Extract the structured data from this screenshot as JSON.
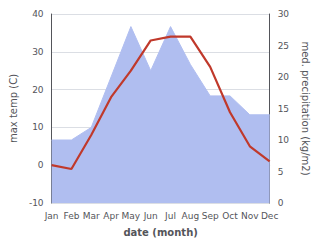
{
  "chart_data": {
    "type": "line",
    "categories": [
      "Jan",
      "Feb",
      "Mar",
      "Apr",
      "May",
      "Jun",
      "Jul",
      "Aug",
      "Sep",
      "Oct",
      "Nov",
      "Dec"
    ],
    "series": [
      {
        "type": "area",
        "axis": "y2",
        "color": "#b0bef0",
        "values": [
          10,
          10,
          12,
          20,
          28,
          21,
          28,
          22,
          17,
          17,
          14,
          14
        ]
      },
      {
        "type": "line",
        "color": "#c0392b",
        "values": [
          0,
          -1,
          8,
          18,
          25,
          33,
          34,
          34,
          26,
          14,
          5,
          1
        ]
      }
    ],
    "xlabel": "date (month)",
    "ylabel": "max temp (C)",
    "y2label": "med. precipitation (kg/m2)",
    "ylim": [
      -10,
      40
    ],
    "yticks": [
      -10,
      0,
      10,
      20,
      30,
      40
    ],
    "y2lim": [
      0,
      30
    ],
    "y2ticks": [
      0,
      5,
      10,
      15,
      20,
      25,
      30
    ],
    "grid": true
  }
}
